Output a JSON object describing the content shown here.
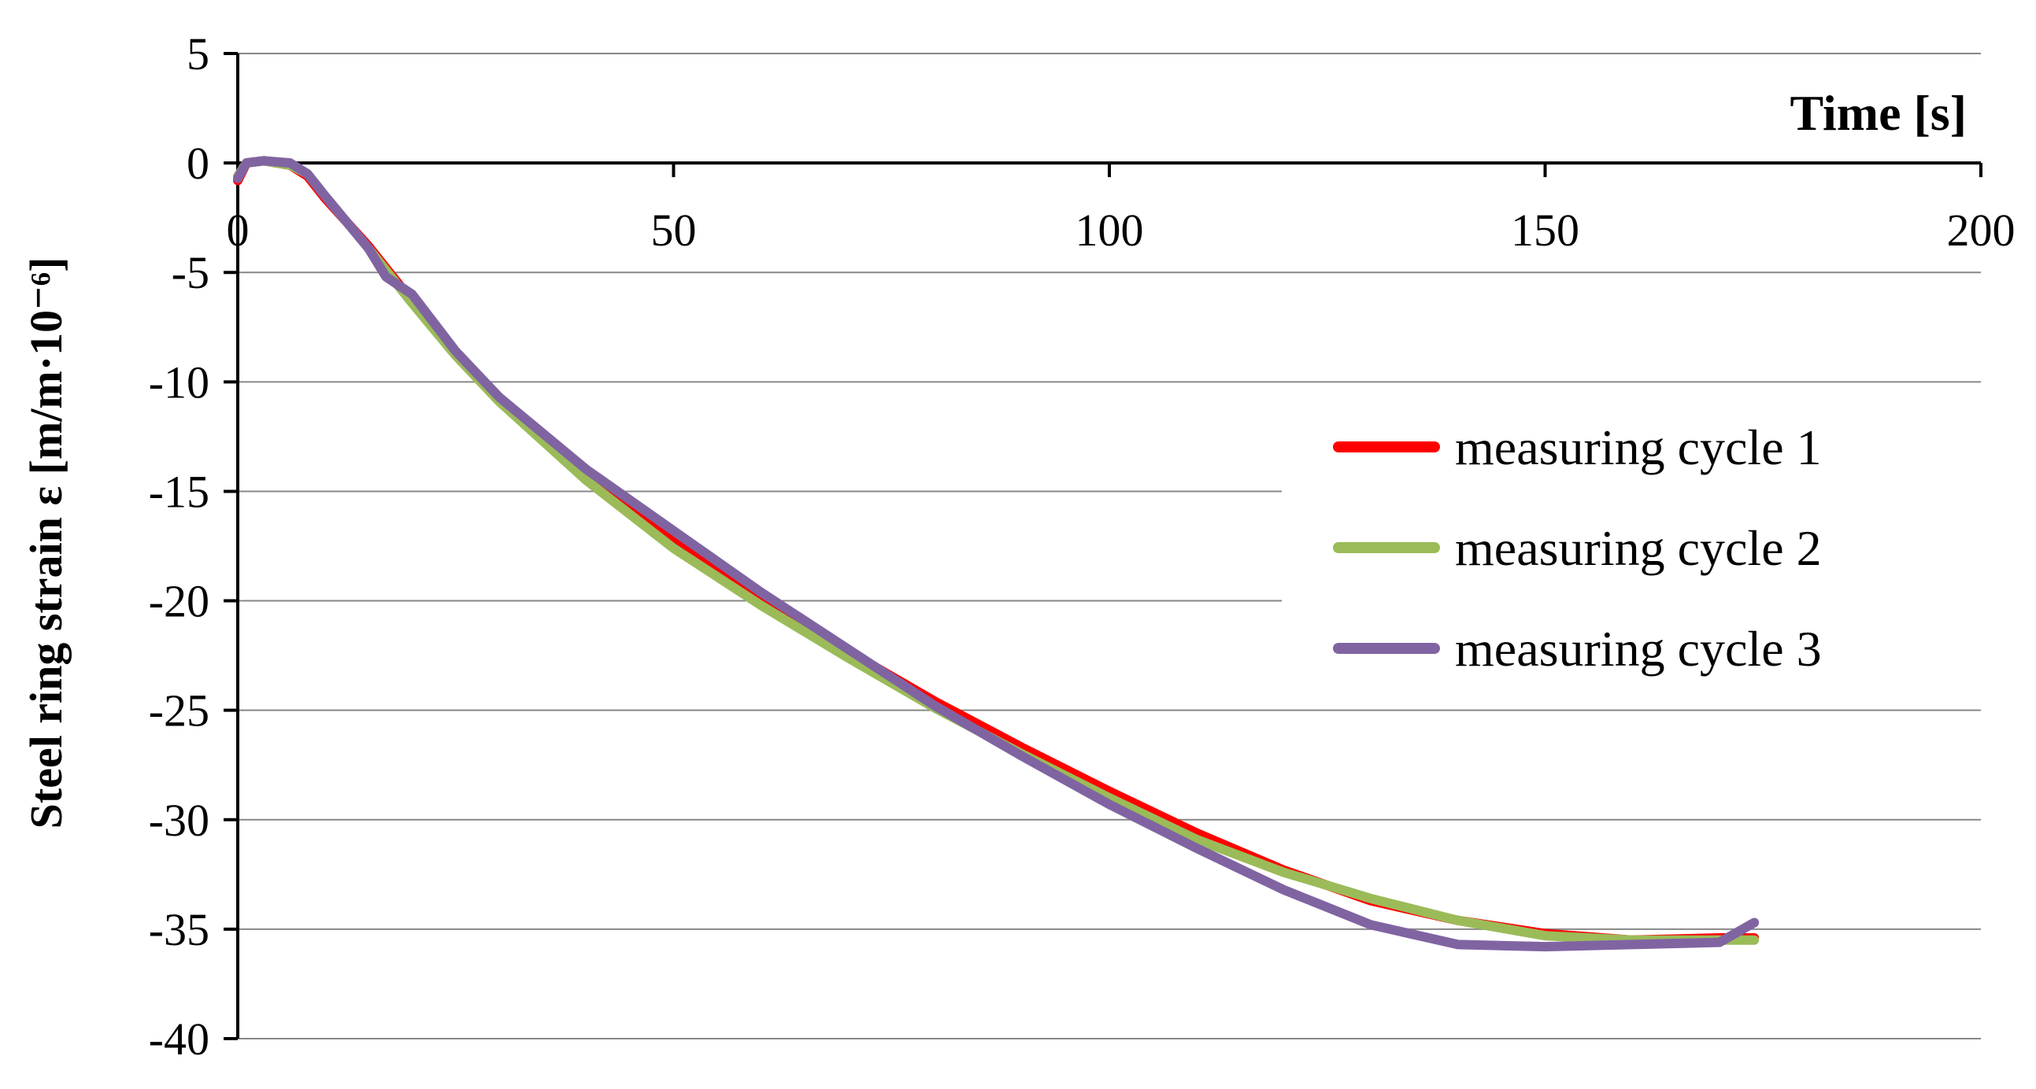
{
  "chart_data": {
    "type": "line",
    "xlabel": "Time  [s]",
    "ylabel": "Steel ring strain  ε [m/m·10⁻⁶]",
    "xlim": [
      0,
      200
    ],
    "ylim": [
      -40,
      5
    ],
    "xticks": [
      "0",
      "50",
      "100",
      "150",
      "200"
    ],
    "yticks": [
      "5",
      "0",
      "-5",
      "-10",
      "-15",
      "-20",
      "-25",
      "-30",
      "-35",
      "-40"
    ],
    "grid": true,
    "legend_position": "right",
    "series": [
      {
        "name": "measuring cycle 1",
        "color": "#ff0000",
        "x": [
          0,
          1,
          3,
          6,
          8,
          10,
          15,
          20,
          25,
          30,
          40,
          50,
          60,
          70,
          80,
          90,
          100,
          110,
          120,
          130,
          140,
          150,
          160,
          170,
          174
        ],
        "y": [
          -0.8,
          0,
          0.1,
          -0.1,
          -0.6,
          -1.6,
          -3.8,
          -6.3,
          -8.7,
          -10.8,
          -14.2,
          -17.2,
          -19.9,
          -22.3,
          -24.6,
          -26.7,
          -28.7,
          -30.6,
          -32.3,
          -33.7,
          -34.6,
          -35.2,
          -35.5,
          -35.4,
          -35.4
        ]
      },
      {
        "name": "measuring cycle 2",
        "color": "#9bbb59",
        "x": [
          0,
          1,
          3,
          6,
          8,
          10,
          15,
          20,
          25,
          30,
          40,
          50,
          60,
          70,
          80,
          90,
          100,
          110,
          120,
          130,
          140,
          150,
          160,
          170,
          174
        ],
        "y": [
          -0.6,
          0,
          0.1,
          -0.1,
          -0.5,
          -1.5,
          -3.9,
          -6.4,
          -8.8,
          -10.9,
          -14.5,
          -17.6,
          -20.2,
          -22.6,
          -24.9,
          -27.0,
          -29.0,
          -30.9,
          -32.4,
          -33.6,
          -34.6,
          -35.3,
          -35.5,
          -35.5,
          -35.5
        ]
      },
      {
        "name": "measuring cycle 3",
        "color": "#8064a2",
        "x": [
          0,
          1,
          3,
          6,
          8,
          10,
          15,
          17,
          20,
          25,
          30,
          40,
          50,
          60,
          70,
          80,
          90,
          100,
          110,
          120,
          130,
          140,
          150,
          160,
          170,
          174
        ],
        "y": [
          -0.7,
          0,
          0.1,
          0,
          -0.5,
          -1.5,
          -3.9,
          -5.2,
          -6.0,
          -8.6,
          -10.7,
          -14.0,
          -16.8,
          -19.6,
          -22.2,
          -24.8,
          -27.1,
          -29.3,
          -31.3,
          -33.2,
          -34.8,
          -35.7,
          -35.8,
          -35.7,
          -35.6,
          -34.7
        ]
      }
    ]
  }
}
